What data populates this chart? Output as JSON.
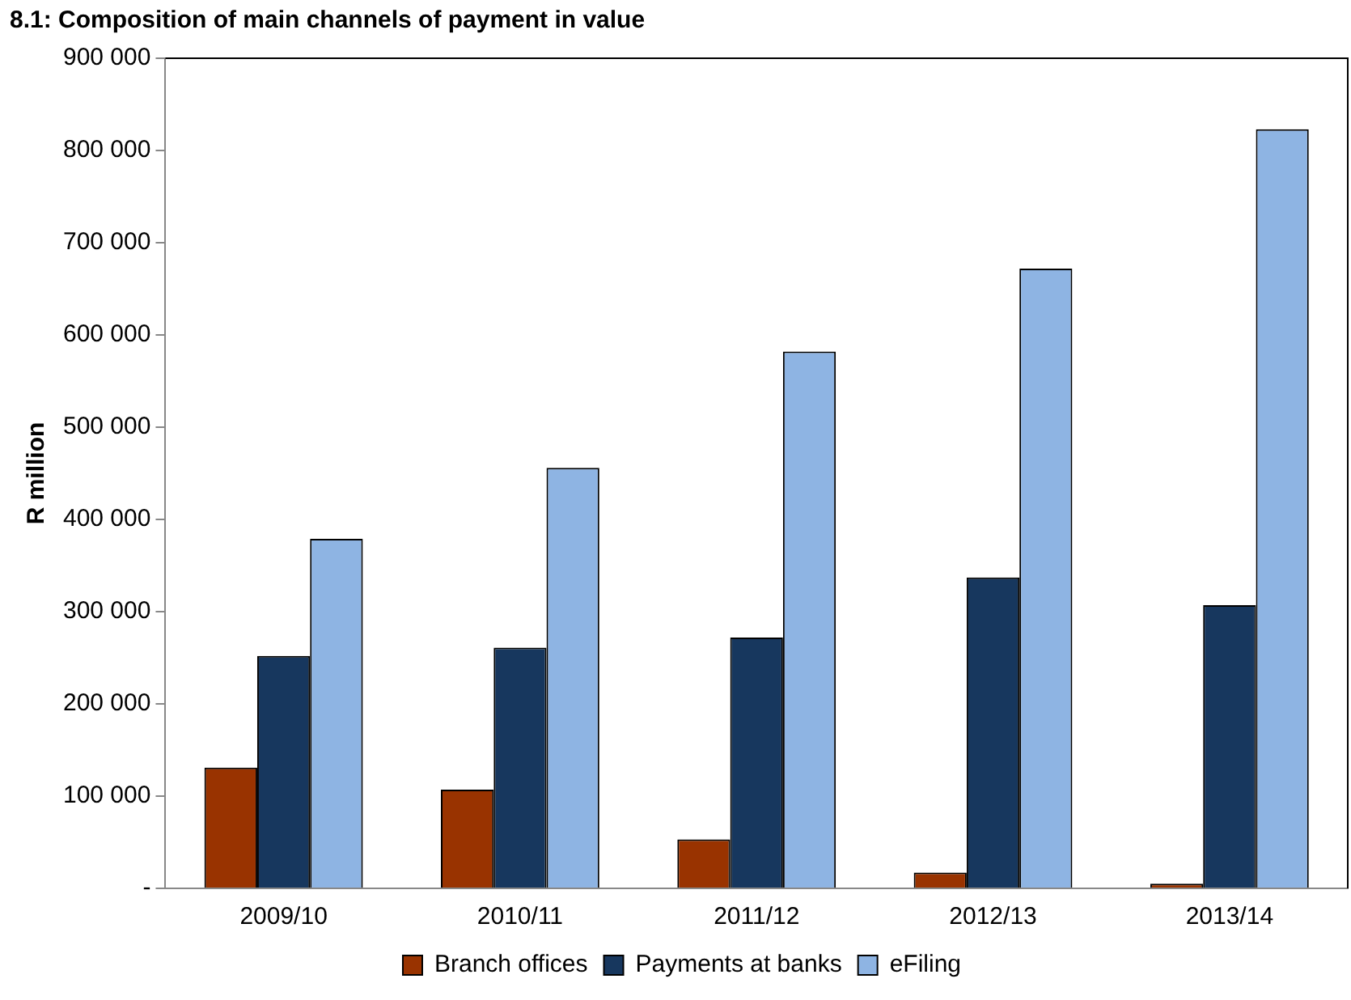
{
  "chart_data": {
    "type": "bar",
    "title": "8.1: Composition of main channels of payment in value",
    "ylabel": "R million",
    "categories": [
      "2009/10",
      "2010/11",
      "2011/12",
      "2012/13",
      "2013/14"
    ],
    "series": [
      {
        "name": "Branch offices",
        "color": "#993300",
        "values": [
          131000,
          107000,
          53000,
          17000,
          5000
        ]
      },
      {
        "name": "Payments at banks",
        "color": "#17375e",
        "values": [
          252000,
          261000,
          272000,
          337000,
          307000
        ]
      },
      {
        "name": "eFiling",
        "color": "#8eb4e3",
        "values": [
          379000,
          456000,
          582000,
          672000,
          823000
        ]
      }
    ],
    "ylim": [
      0,
      900000
    ],
    "yticks": [
      {
        "value": 0,
        "label": "-"
      },
      {
        "value": 100000,
        "label": "100 000"
      },
      {
        "value": 200000,
        "label": "200 000"
      },
      {
        "value": 300000,
        "label": "300 000"
      },
      {
        "value": 400000,
        "label": "400 000"
      },
      {
        "value": 500000,
        "label": "500 000"
      },
      {
        "value": 600000,
        "label": "600 000"
      },
      {
        "value": 700000,
        "label": "700 000"
      },
      {
        "value": 800000,
        "label": "800 000"
      },
      {
        "value": 900000,
        "label": "900 000"
      }
    ],
    "grid": false,
    "legend": "bottom"
  }
}
